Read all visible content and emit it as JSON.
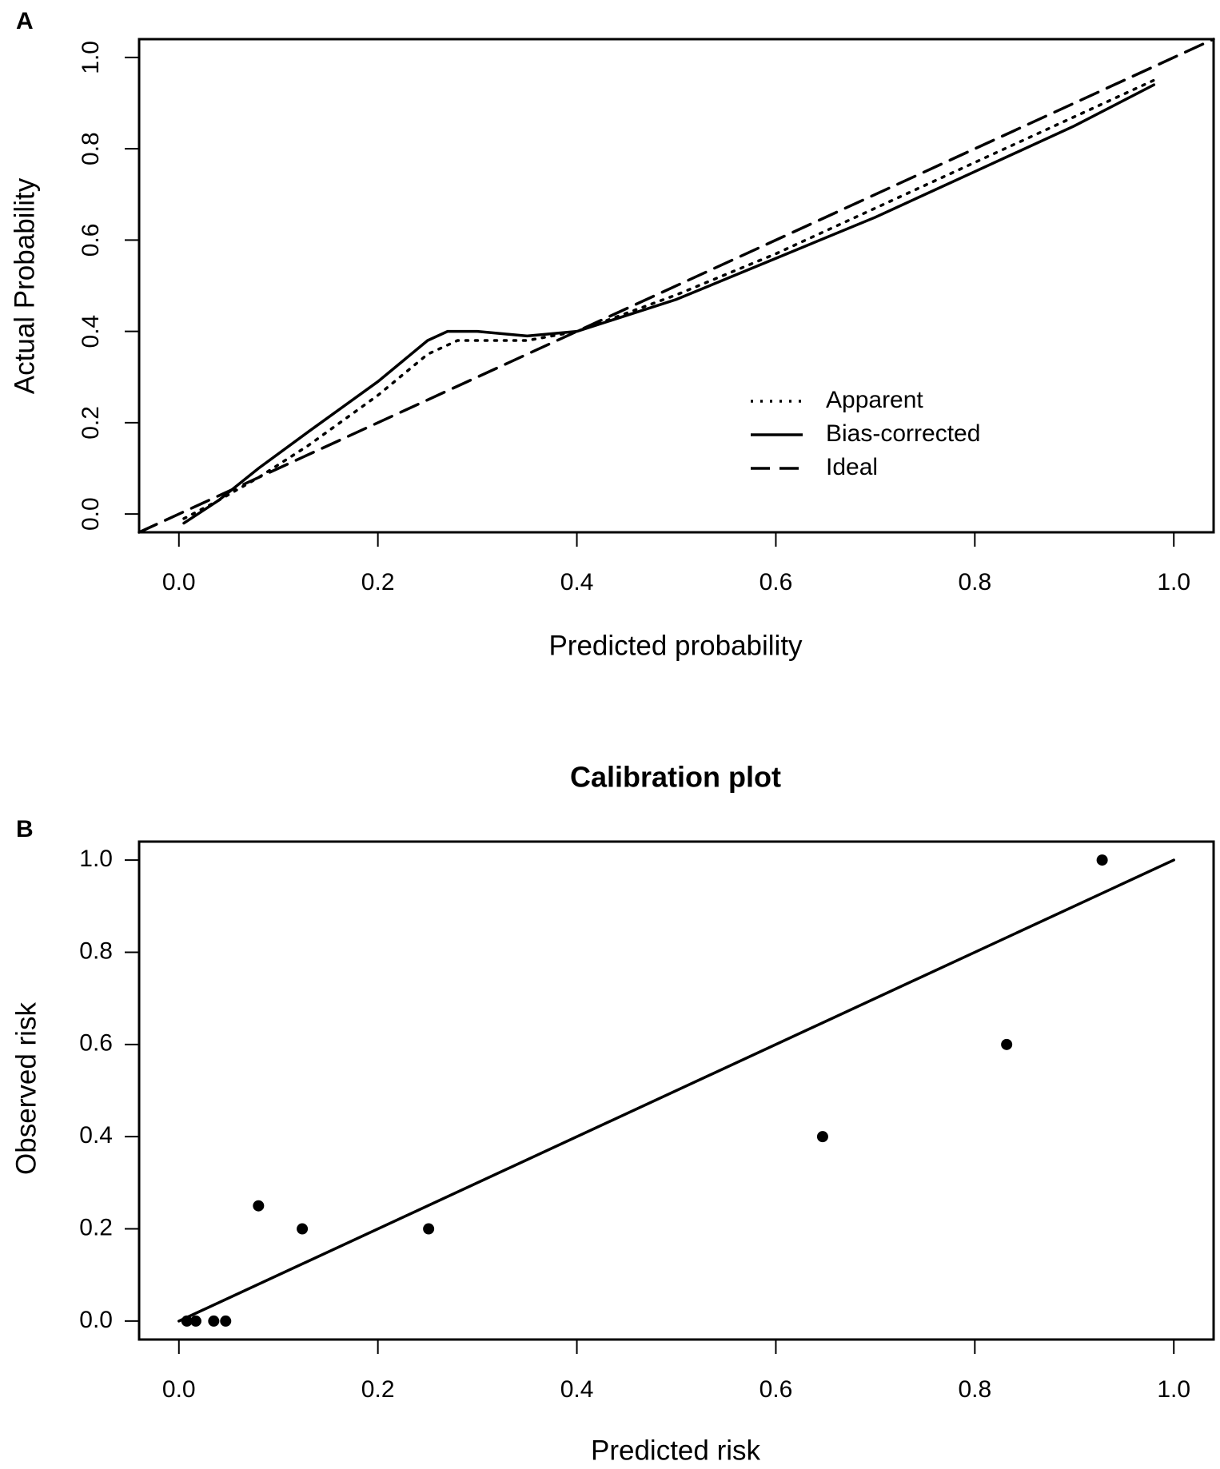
{
  "chart_data": [
    {
      "type": "line",
      "panel": "A",
      "x_label": "Predicted probability",
      "y_label": "Actual Probability",
      "xlim": [
        -0.04,
        1.04
      ],
      "ylim": [
        -0.04,
        1.04
      ],
      "xticks": [
        {
          "value": 0,
          "label": "0.0"
        },
        0.2,
        0.4,
        0.6,
        0.8,
        {
          "value": 1,
          "label": "1.0"
        }
      ],
      "yticks": [
        {
          "value": 0,
          "label": "0.0"
        },
        0.2,
        0.4,
        0.6,
        0.8,
        {
          "value": 1,
          "label": "1.0"
        }
      ],
      "legend": "bottom-right",
      "series": [
        {
          "name": "Apparent",
          "color": "#000000",
          "dash": "dotted",
          "x": [
            0.005,
            0.04,
            0.08,
            0.13,
            0.2,
            0.25,
            0.28,
            0.35,
            0.4,
            0.5,
            0.6,
            0.7,
            0.8,
            0.9,
            0.98
          ],
          "values": [
            -0.01,
            0.03,
            0.08,
            0.15,
            0.26,
            0.35,
            0.38,
            0.38,
            0.4,
            0.48,
            0.57,
            0.67,
            0.77,
            0.87,
            0.95
          ]
        },
        {
          "name": "Bias-corrected",
          "color": "#000000",
          "dash": "solid",
          "x": [
            0.005,
            0.04,
            0.08,
            0.13,
            0.2,
            0.25,
            0.27,
            0.3,
            0.35,
            0.4,
            0.5,
            0.6,
            0.7,
            0.8,
            0.9,
            0.98
          ],
          "values": [
            -0.02,
            0.03,
            0.1,
            0.18,
            0.29,
            0.38,
            0.4,
            0.4,
            0.39,
            0.4,
            0.47,
            0.56,
            0.65,
            0.75,
            0.85,
            0.94
          ]
        },
        {
          "name": "Ideal",
          "color": "#000000",
          "dash": "dashed",
          "x": [
            -0.04,
            1.04
          ],
          "values": [
            -0.04,
            1.04
          ]
        }
      ]
    },
    {
      "type": "scatter",
      "panel": "B",
      "title": "Calibration plot",
      "x_label": "Predicted risk",
      "y_label": "Observed risk",
      "xlim": [
        -0.04,
        1.04
      ],
      "ylim": [
        -0.04,
        1.04
      ],
      "xticks": [
        {
          "value": 0,
          "label": "0.0"
        },
        0.2,
        0.4,
        0.6,
        0.8,
        {
          "value": 1,
          "label": "1.0"
        }
      ],
      "yticks": [
        {
          "value": 0,
          "label": "0.0"
        },
        0.2,
        0.4,
        0.6,
        0.8,
        {
          "value": 1,
          "label": "1.0"
        }
      ],
      "color": "#000000",
      "points": {
        "x": [
          0.008,
          0.017,
          0.035,
          0.047,
          0.08,
          0.124,
          0.251,
          0.647,
          0.832,
          0.928
        ],
        "values": [
          0,
          0,
          0,
          0,
          0.25,
          0.2,
          0.2,
          0.4,
          0.6,
          1.0
        ]
      },
      "line": {
        "x": [
          0,
          1
        ],
        "values": [
          0,
          1
        ]
      }
    }
  ]
}
